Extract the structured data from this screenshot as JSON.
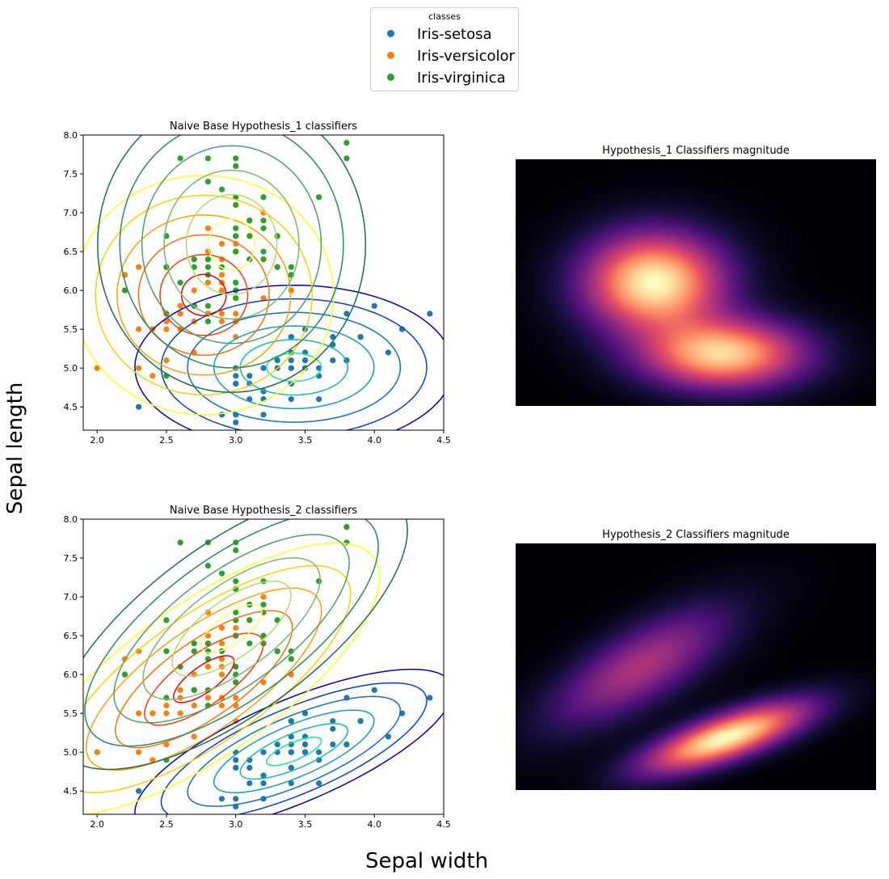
{
  "legend": {
    "title": "classes",
    "items": [
      {
        "label": "Iris-setosa",
        "color": "#1f77b4"
      },
      {
        "label": "Iris-versicolor",
        "color": "#ff7f0e"
      },
      {
        "label": "Iris-virginica",
        "color": "#2ca02c"
      }
    ]
  },
  "figure": {
    "xlabel": "Sepal width",
    "ylabel": "Sepal length"
  },
  "chart_data": [
    {
      "type": "scatter",
      "title": "Naive Base Hypothesis_1 classifiers",
      "xlabel": "Sepal width",
      "ylabel": "Sepal length",
      "xlim": [
        1.9,
        4.5
      ],
      "ylim": [
        4.2,
        8.0
      ],
      "xticks": [
        "2.0",
        "2.5",
        "3.0",
        "3.5",
        "4.0",
        "4.5"
      ],
      "yticks": [
        "4.5",
        "5.0",
        "5.5",
        "6.0",
        "6.5",
        "7.0",
        "7.5",
        "8.0"
      ],
      "series": [
        {
          "name": "Iris-setosa",
          "color": "#1f77b4",
          "points": [
            [
              3.5,
              5.1
            ],
            [
              3.0,
              4.9
            ],
            [
              3.2,
              4.7
            ],
            [
              3.1,
              4.6
            ],
            [
              3.6,
              5.0
            ],
            [
              3.9,
              5.4
            ],
            [
              3.4,
              4.6
            ],
            [
              3.4,
              5.0
            ],
            [
              2.9,
              4.4
            ],
            [
              3.1,
              4.9
            ],
            [
              3.7,
              5.4
            ],
            [
              3.4,
              4.8
            ],
            [
              3.0,
              4.8
            ],
            [
              3.0,
              4.3
            ],
            [
              4.0,
              5.8
            ],
            [
              4.4,
              5.7
            ],
            [
              3.9,
              5.4
            ],
            [
              3.5,
              5.1
            ],
            [
              3.8,
              5.7
            ],
            [
              3.8,
              5.1
            ],
            [
              3.4,
              5.4
            ],
            [
              3.7,
              5.1
            ],
            [
              3.6,
              4.6
            ],
            [
              3.3,
              5.1
            ],
            [
              3.4,
              4.8
            ],
            [
              3.0,
              5.0
            ],
            [
              3.4,
              5.0
            ],
            [
              3.5,
              5.2
            ],
            [
              3.4,
              5.2
            ],
            [
              3.2,
              4.7
            ],
            [
              3.1,
              4.8
            ],
            [
              3.4,
              5.4
            ],
            [
              4.1,
              5.2
            ],
            [
              4.2,
              5.5
            ],
            [
              3.2,
              5.0
            ],
            [
              3.5,
              5.5
            ],
            [
              3.6,
              4.9
            ],
            [
              3.0,
              4.4
            ],
            [
              3.4,
              5.1
            ],
            [
              3.5,
              5.0
            ],
            [
              2.3,
              4.5
            ],
            [
              3.2,
              4.4
            ],
            [
              3.5,
              5.0
            ],
            [
              3.8,
              5.1
            ],
            [
              3.0,
              4.8
            ],
            [
              3.8,
              5.1
            ],
            [
              3.2,
              4.6
            ],
            [
              3.7,
              5.3
            ],
            [
              3.3,
              5.0
            ]
          ]
        },
        {
          "name": "Iris-versicolor",
          "color": "#ff7f0e",
          "points": [
            [
              3.2,
              7.0
            ],
            [
              3.2,
              6.4
            ],
            [
              3.1,
              6.9
            ],
            [
              2.3,
              5.5
            ],
            [
              2.8,
              6.5
            ],
            [
              2.8,
              5.7
            ],
            [
              3.3,
              6.3
            ],
            [
              2.4,
              4.9
            ],
            [
              2.9,
              6.6
            ],
            [
              2.7,
              5.2
            ],
            [
              2.0,
              5.0
            ],
            [
              3.0,
              5.9
            ],
            [
              2.2,
              6.0
            ],
            [
              2.9,
              6.1
            ],
            [
              2.9,
              5.6
            ],
            [
              3.1,
              6.7
            ],
            [
              3.0,
              5.6
            ],
            [
              2.7,
              5.8
            ],
            [
              2.2,
              6.2
            ],
            [
              2.5,
              5.6
            ],
            [
              3.2,
              5.9
            ],
            [
              2.8,
              6.1
            ],
            [
              2.5,
              6.3
            ],
            [
              2.8,
              6.1
            ],
            [
              2.9,
              6.4
            ],
            [
              3.0,
              6.6
            ],
            [
              2.8,
              6.8
            ],
            [
              3.0,
              6.7
            ],
            [
              2.9,
              6.0
            ],
            [
              2.6,
              5.7
            ],
            [
              2.4,
              5.5
            ],
            [
              2.4,
              5.5
            ],
            [
              2.7,
              5.8
            ],
            [
              2.7,
              6.0
            ],
            [
              3.0,
              5.4
            ],
            [
              3.4,
              6.0
            ],
            [
              3.1,
              6.7
            ],
            [
              2.3,
              6.3
            ],
            [
              3.0,
              5.6
            ],
            [
              2.5,
              5.5
            ],
            [
              2.6,
              5.5
            ],
            [
              3.0,
              6.1
            ],
            [
              2.6,
              5.8
            ],
            [
              2.3,
              5.0
            ],
            [
              2.7,
              5.6
            ],
            [
              3.0,
              5.7
            ],
            [
              2.9,
              5.7
            ],
            [
              2.9,
              6.2
            ],
            [
              2.5,
              5.1
            ],
            [
              2.8,
              5.7
            ]
          ]
        },
        {
          "name": "Iris-virginica",
          "color": "#2ca02c",
          "points": [
            [
              3.3,
              6.3
            ],
            [
              2.7,
              5.8
            ],
            [
              3.0,
              7.1
            ],
            [
              2.9,
              6.3
            ],
            [
              3.0,
              6.5
            ],
            [
              3.0,
              7.6
            ],
            [
              2.5,
              4.9
            ],
            [
              2.9,
              7.3
            ],
            [
              2.5,
              6.7
            ],
            [
              3.6,
              7.2
            ],
            [
              3.2,
              6.5
            ],
            [
              2.7,
              6.4
            ],
            [
              3.0,
              6.8
            ],
            [
              2.5,
              5.7
            ],
            [
              2.8,
              5.8
            ],
            [
              3.2,
              6.4
            ],
            [
              3.0,
              6.5
            ],
            [
              3.8,
              7.7
            ],
            [
              2.6,
              7.7
            ],
            [
              2.2,
              6.0
            ],
            [
              3.2,
              6.9
            ],
            [
              2.8,
              5.6
            ],
            [
              2.8,
              7.7
            ],
            [
              2.7,
              6.3
            ],
            [
              3.3,
              6.7
            ],
            [
              3.2,
              7.2
            ],
            [
              2.8,
              6.2
            ],
            [
              3.0,
              6.1
            ],
            [
              2.8,
              6.4
            ],
            [
              3.0,
              7.2
            ],
            [
              2.8,
              7.4
            ],
            [
              3.8,
              7.9
            ],
            [
              2.8,
              6.4
            ],
            [
              2.8,
              6.3
            ],
            [
              2.6,
              6.1
            ],
            [
              3.0,
              7.7
            ],
            [
              3.4,
              6.3
            ],
            [
              3.1,
              6.4
            ],
            [
              3.0,
              6.0
            ],
            [
              3.1,
              6.9
            ],
            [
              3.1,
              6.7
            ],
            [
              3.1,
              6.9
            ],
            [
              2.7,
              5.8
            ],
            [
              3.2,
              6.8
            ],
            [
              3.3,
              6.7
            ],
            [
              3.0,
              6.7
            ],
            [
              2.5,
              6.3
            ],
            [
              3.0,
              6.5
            ],
            [
              3.4,
              6.2
            ],
            [
              3.0,
              5.9
            ]
          ]
        }
      ],
      "contours": [
        {
          "class": "Iris-setosa",
          "mean": [
            3.42,
            5.01
          ],
          "sd": [
            0.38,
            0.35
          ],
          "rho": 0.0,
          "colors": [
            "#0000cc",
            "#0a3fd0",
            "#1070c8",
            "#0fa0c0",
            "#10c0a8",
            "#10f090"
          ]
        },
        {
          "class": "Iris-versicolor",
          "mean": [
            2.77,
            5.94
          ],
          "sd": [
            0.31,
            0.51
          ],
          "rho": 0.0,
          "colors": [
            "#ffff20",
            "#ffd000",
            "#ffa200",
            "#ff7000",
            "#ff3c00",
            "#ee0000"
          ]
        },
        {
          "class": "Iris-virginica",
          "mean": [
            2.97,
            6.59
          ],
          "sd": [
            0.32,
            0.63
          ],
          "rho": 0.0,
          "colors": [
            "#1e6e4c",
            "#2a8a5e",
            "#4da06a",
            "#7ab870",
            "#b5d870",
            "#ffff66"
          ]
        }
      ]
    },
    {
      "type": "heatmap",
      "title": "Hypothesis_1 Classifiers magnitude",
      "colormap": "magma",
      "xlim": [
        1.9,
        4.5
      ],
      "ylim": [
        4.2,
        8.0
      ],
      "peaks": [
        {
          "mean": [
            2.9,
            6.1
          ],
          "sd": [
            0.33,
            0.5
          ],
          "rho": 0.0,
          "weight": 1.0
        },
        {
          "mean": [
            3.4,
            5.0
          ],
          "sd": [
            0.38,
            0.35
          ],
          "rho": 0.0,
          "weight": 0.9
        }
      ]
    },
    {
      "type": "scatter",
      "title": "Naive Base Hypothesis_2 classifiers",
      "xlabel": "Sepal width",
      "ylabel": "Sepal length",
      "xlim": [
        1.9,
        4.5
      ],
      "ylim": [
        4.2,
        8.0
      ],
      "xticks": [
        "2.0",
        "2.5",
        "3.0",
        "3.5",
        "4.0",
        "4.5"
      ],
      "yticks": [
        "4.5",
        "5.0",
        "5.5",
        "6.0",
        "6.5",
        "7.0",
        "7.5",
        "8.0"
      ],
      "series_same_as": "Naive Base Hypothesis_1 classifiers",
      "contours": [
        {
          "class": "Iris-setosa",
          "mean": [
            3.42,
            5.01
          ],
          "sd": [
            0.38,
            0.35
          ],
          "rho": 0.74,
          "colors": [
            "#0000cc",
            "#0a3fd0",
            "#1070c8",
            "#0fa0c0",
            "#10c0a8",
            "#10f090"
          ]
        },
        {
          "class": "Iris-versicolor",
          "mean": [
            2.77,
            5.94
          ],
          "sd": [
            0.42,
            0.58
          ],
          "rho": 0.75,
          "colors": [
            "#ffff20",
            "#ffd000",
            "#ffa200",
            "#ff7000",
            "#ff3c00",
            "#ee0000"
          ]
        },
        {
          "class": "Iris-virginica",
          "mean": [
            2.97,
            6.59
          ],
          "sd": [
            0.42,
            0.6
          ],
          "rho": 0.7,
          "colors": [
            "#1e6e4c",
            "#2a8a5e",
            "#4da06a",
            "#7ab870",
            "#b5d870",
            "#ffff66"
          ]
        }
      ]
    },
    {
      "type": "heatmap",
      "title": "Hypothesis_2 Classifiers magnitude",
      "colormap": "magma",
      "xlim": [
        1.9,
        4.5
      ],
      "ylim": [
        4.2,
        8.0
      ],
      "peaks": [
        {
          "mean": [
            3.42,
            5.01
          ],
          "sd": [
            0.38,
            0.35
          ],
          "rho": 0.74,
          "weight": 1.0
        },
        {
          "mean": [
            2.8,
            6.1
          ],
          "sd": [
            0.42,
            0.6
          ],
          "rho": 0.72,
          "weight": 0.42
        }
      ]
    }
  ]
}
